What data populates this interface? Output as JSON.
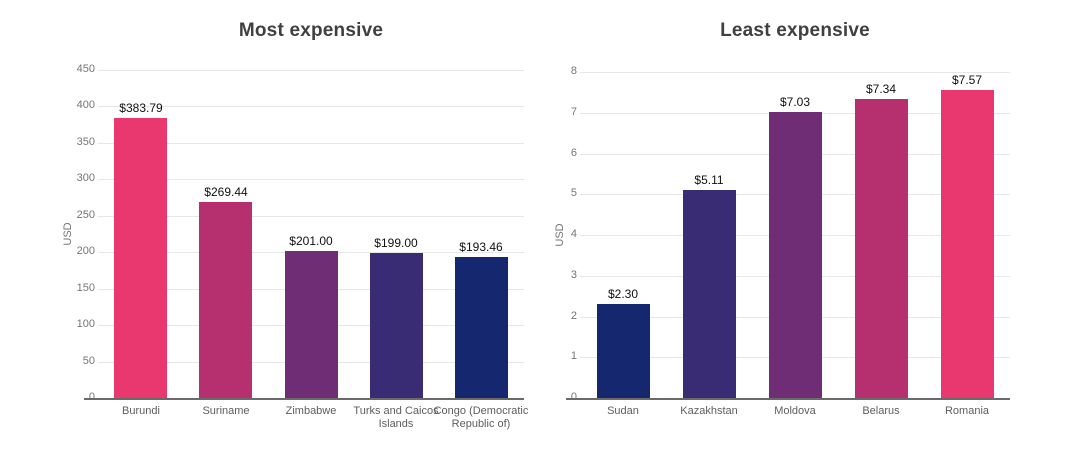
{
  "chart_data": [
    {
      "type": "bar",
      "title": "Most expensive",
      "xlabel": "",
      "ylabel": "USD",
      "categories": [
        "Burundi",
        "Suriname",
        "Zimbabwe",
        "Turks and Caicos Islands",
        "Congo (Democratic Republic of)"
      ],
      "values": [
        383.79,
        269.44,
        201.0,
        199.0,
        193.46
      ],
      "value_labels": [
        "$383.79",
        "$269.44",
        "$201.00",
        "$199.00",
        "$193.46"
      ],
      "bar_colors": [
        "#E93870",
        "#B6306F",
        "#6F2D75",
        "#3A2B75",
        "#15276E"
      ],
      "ylim": [
        0,
        450
      ],
      "yticks": [
        0,
        50,
        100,
        150,
        200,
        250,
        300,
        350,
        400,
        450
      ],
      "grid": true,
      "legend": "none"
    },
    {
      "type": "bar",
      "title": "Least expensive",
      "xlabel": "",
      "ylabel": "USD",
      "categories": [
        "Sudan",
        "Kazakhstan",
        "Moldova",
        "Belarus",
        "Romania"
      ],
      "values": [
        2.3,
        5.11,
        7.03,
        7.34,
        7.57
      ],
      "value_labels": [
        "$2.30",
        "$5.11",
        "$7.03",
        "$7.34",
        "$7.57"
      ],
      "bar_colors": [
        "#15276E",
        "#3A2B75",
        "#6F2D75",
        "#B6306F",
        "#E93870"
      ],
      "ylim": [
        0,
        8
      ],
      "yticks": [
        0,
        1,
        2,
        3,
        4,
        5,
        6,
        7,
        8
      ],
      "grid": true,
      "legend": "none"
    }
  ],
  "styles": {
    "background": "#FFFFFF",
    "title_color": "#404040",
    "tick_color": "#757575",
    "category_label_color": "#5E5E5E",
    "value_label_color": "#111111",
    "gridline_color": "#E7E7E7",
    "axis_color": "#6A6A6A"
  }
}
